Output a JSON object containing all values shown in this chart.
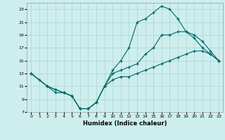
{
  "xlabel": "Humidex (Indice chaleur)",
  "background_color": "#cdeeed",
  "grid_color": "#aad4d4",
  "line_color": "#006666",
  "xlim": [
    -0.5,
    23.5
  ],
  "ylim": [
    7,
    24
  ],
  "xticks": [
    0,
    1,
    2,
    3,
    4,
    5,
    6,
    7,
    8,
    9,
    10,
    11,
    12,
    13,
    14,
    15,
    16,
    17,
    18,
    19,
    20,
    21,
    22,
    23
  ],
  "yticks": [
    7,
    9,
    11,
    13,
    15,
    17,
    19,
    21,
    23
  ],
  "line1_x": [
    0,
    1,
    2,
    3,
    4,
    5,
    6,
    7,
    8,
    9,
    10,
    11,
    12,
    13,
    14,
    15,
    16,
    17,
    18,
    19,
    20,
    21,
    22,
    23
  ],
  "line1_y": [
    13,
    12,
    11,
    10.5,
    10,
    9.5,
    7.5,
    7.5,
    8.5,
    11,
    13.5,
    15,
    17,
    21,
    21.5,
    22.5,
    23.5,
    23,
    21.5,
    19.5,
    18.5,
    17,
    16,
    15
  ],
  "line2_x": [
    0,
    2,
    3,
    4,
    5,
    6,
    7,
    8,
    9,
    10,
    11,
    12,
    13,
    14,
    15,
    16,
    17,
    18,
    19,
    20,
    21,
    22,
    23
  ],
  "line2_y": [
    13,
    11,
    10,
    10,
    9.5,
    7.5,
    7.5,
    8.5,
    11,
    13,
    13.5,
    14,
    14.5,
    16,
    17,
    19,
    19,
    19.5,
    19.5,
    19,
    18,
    16.5,
    15
  ],
  "line3_x": [
    0,
    2,
    3,
    4,
    5,
    6,
    7,
    8,
    9,
    10,
    11,
    12,
    13,
    14,
    15,
    16,
    17,
    18,
    19,
    20,
    21,
    22,
    23
  ],
  "line3_y": [
    13,
    11,
    10.5,
    10,
    9.5,
    7.5,
    7.5,
    8.5,
    11,
    12,
    12.5,
    12.5,
    13,
    13.5,
    14,
    14.5,
    15,
    15.5,
    16,
    16.5,
    16.5,
    16,
    15
  ]
}
